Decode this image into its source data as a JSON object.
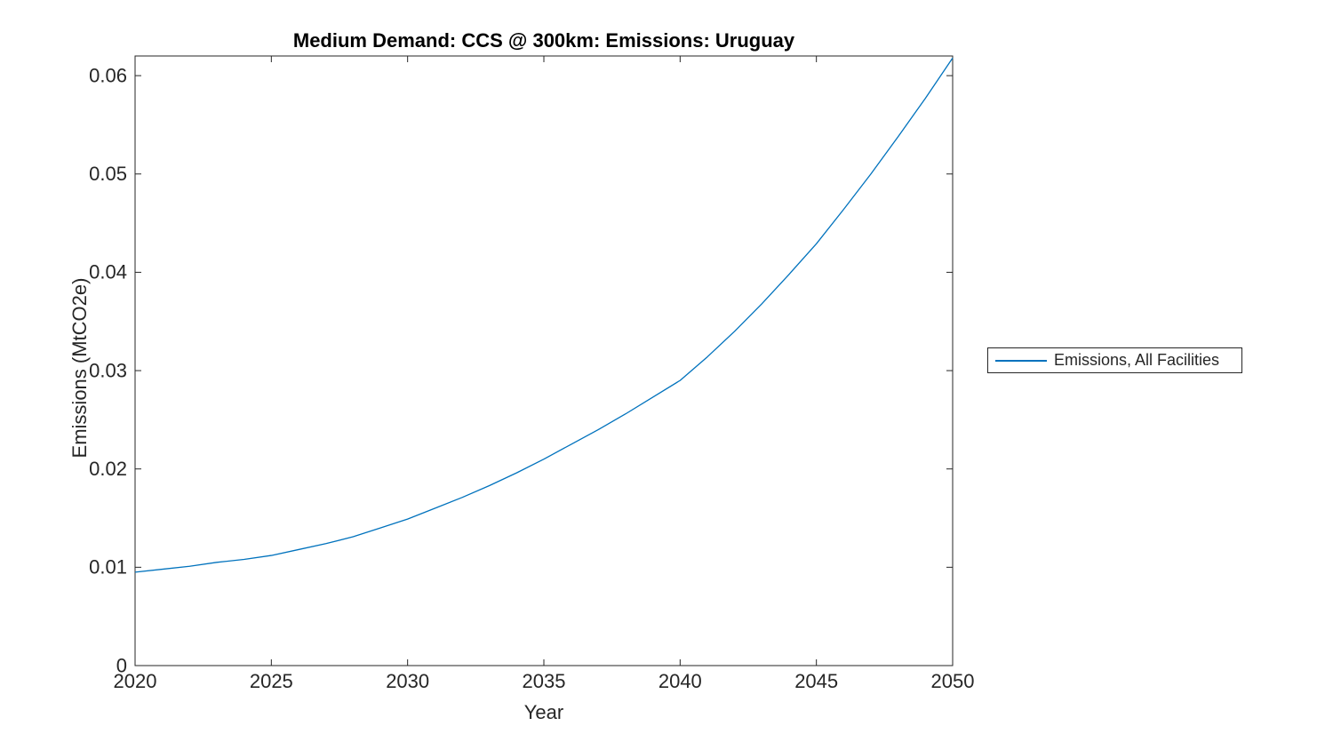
{
  "colors": {
    "series_blue": "#0072BD",
    "axis": "#262626",
    "title": "#000000",
    "background": "#ffffff"
  },
  "chart_data": {
    "type": "line",
    "title": "Medium Demand: CCS @ 300km: Emissions: Uruguay",
    "xlabel": "Year",
    "ylabel": "Emissions (MtCO2e)",
    "xlim": [
      2020,
      2050
    ],
    "ylim": [
      0,
      0.062
    ],
    "x_ticks": [
      2020,
      2025,
      2030,
      2035,
      2040,
      2045,
      2050
    ],
    "y_ticks": [
      0,
      0.01,
      0.02,
      0.03,
      0.04,
      0.05,
      0.06
    ],
    "grid": false,
    "legend_position": "right-outside",
    "series": [
      {
        "name": "Emissions, All Facilities",
        "color": "#0072BD",
        "x": [
          2020,
          2021,
          2022,
          2023,
          2024,
          2025,
          2026,
          2027,
          2028,
          2029,
          2030,
          2031,
          2032,
          2033,
          2034,
          2035,
          2036,
          2037,
          2038,
          2039,
          2040,
          2041,
          2042,
          2043,
          2044,
          2045,
          2046,
          2047,
          2048,
          2049,
          2050
        ],
        "y": [
          0.0095,
          0.0098,
          0.0101,
          0.0105,
          0.0108,
          0.0112,
          0.0118,
          0.0124,
          0.0131,
          0.014,
          0.0149,
          0.016,
          0.0171,
          0.0183,
          0.0196,
          0.021,
          0.0225,
          0.024,
          0.0256,
          0.0273,
          0.029,
          0.0314,
          0.034,
          0.0368,
          0.0398,
          0.0429,
          0.0464,
          0.05,
          0.0538,
          0.0577,
          0.0618
        ]
      }
    ]
  }
}
